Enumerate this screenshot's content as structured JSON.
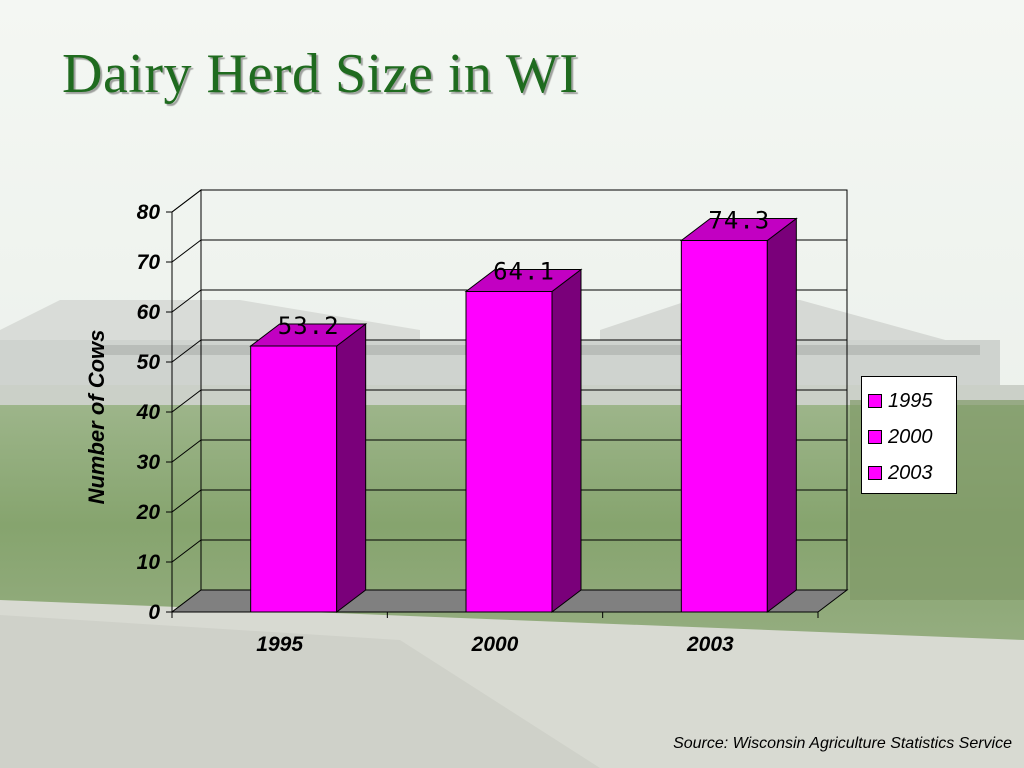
{
  "slide": {
    "title": "Dairy Herd Size in WI",
    "source": "Source:  Wisconsin Agriculture Statistics Service"
  },
  "colors": {
    "bar_front": "#ff00ff",
    "bar_side": "#7a007a",
    "bar_top": "#c200c2",
    "floor": "#808080",
    "title": "#1f6b1f",
    "sky": "#eef3ee",
    "grass": "#7e9f66"
  },
  "legend": {
    "placement": "right",
    "items": [
      {
        "label": "1995",
        "color": "#ff00ff"
      },
      {
        "label": "2000",
        "color": "#ff00ff"
      },
      {
        "label": "2003",
        "color": "#ff00ff"
      }
    ]
  },
  "chart_data": {
    "type": "bar",
    "style": "3d",
    "categories": [
      "1995",
      "2000",
      "2003"
    ],
    "values": [
      53.2,
      64.1,
      74.3
    ],
    "data_labels": [
      "53.2",
      "64.1",
      "74.3"
    ],
    "ylabel": "Number of Cows",
    "ylim": [
      0,
      80
    ],
    "yticks": [
      "0",
      "10",
      "20",
      "30",
      "40",
      "50",
      "60",
      "70",
      "80"
    ],
    "grid": true
  }
}
